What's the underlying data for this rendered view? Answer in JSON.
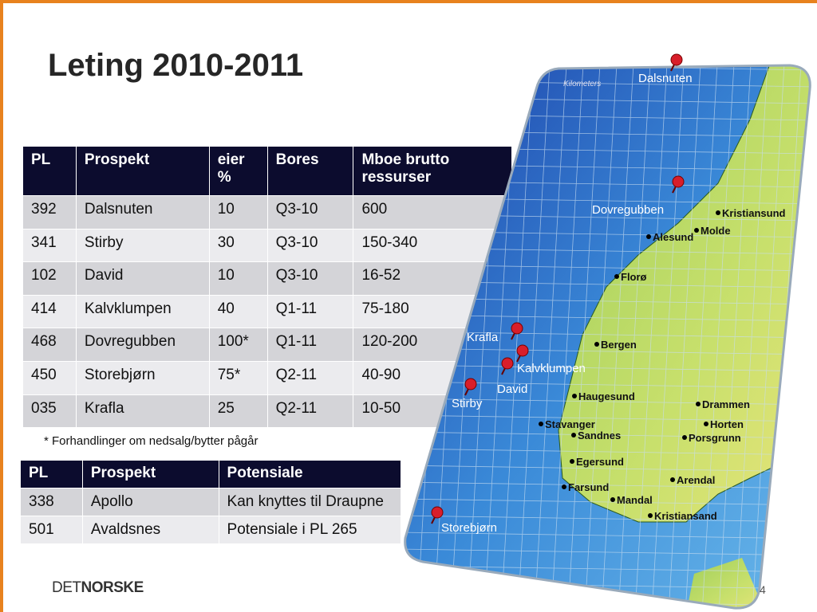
{
  "title": "Leting 2010-2011",
  "table1": {
    "header": [
      "PL",
      "Prospekt",
      "eier %",
      "Bores",
      "Mboe brutto ressurser"
    ],
    "rows": [
      [
        "392",
        "Dalsnuten",
        "10",
        "Q3-10",
        "600"
      ],
      [
        "341",
        "Stirby",
        "30",
        "Q3-10",
        "150-340"
      ],
      [
        "102",
        "David",
        "10",
        "Q3-10",
        "16-52"
      ],
      [
        "414",
        "Kalvklumpen",
        "40",
        "Q1-11",
        "75-180"
      ],
      [
        "468",
        "Dovregubben",
        "100*",
        "Q1-11",
        "120-200"
      ],
      [
        "450",
        "Storebjørn",
        "75*",
        "Q2-11",
        "40-90"
      ],
      [
        "035",
        "Krafla",
        "25",
        "Q2-11",
        "10-50"
      ]
    ]
  },
  "footnote": "* Forhandlinger om nedsalg/bytter pågår",
  "table2": {
    "header": [
      "PL",
      "Prospekt",
      "Potensiale"
    ],
    "rows": [
      [
        "338",
        "Apollo",
        "Kan knyttes til Draupne"
      ],
      [
        "501",
        "Avaldsnes",
        "Potensiale i PL 265"
      ]
    ]
  },
  "map": {
    "scale_label": "Kilometers",
    "prospects": [
      "Dalsnuten",
      "Dovregubben",
      "Krafla",
      "Kalvklumpen",
      "David",
      "Stirby",
      "Storebjørn"
    ],
    "places": [
      "Kristiansund",
      "Molde",
      "Alesund",
      "Florø",
      "Bergen",
      "Haugesund",
      "Stavanger",
      "Sandnes",
      "Egersund",
      "Farsund",
      "Mandal",
      "Kristiansand",
      "Arendal",
      "Porsgrunn",
      "Drammen",
      "Horten"
    ]
  },
  "logo": [
    "DET",
    "NORSKE"
  ],
  "page_number": "4"
}
